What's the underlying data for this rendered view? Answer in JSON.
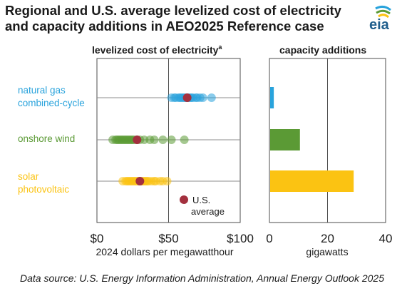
{
  "title_line1": "Regional and U.S. average levelized cost of electricity",
  "title_line2": "and capacity additions in AEO2025 Reference case",
  "logo_text": "eia",
  "source": "Data source:  U.S. Energy Information Administration, Annual Energy Outlook 2025",
  "colors": {
    "natural_gas": "#29a3dc",
    "onshore_wind": "#5b9a35",
    "solar": "#fbc312",
    "us_average": "#a3303e",
    "grid": "#4d4d4d"
  },
  "chart_data": [
    {
      "type": "scatter",
      "title": "levelized cost of electricity",
      "title_sup": "a",
      "xlabel": "2024 dollars per megawatthour",
      "xlim": [
        0,
        100
      ],
      "x_ticks": [
        0,
        50,
        100
      ],
      "x_tick_labels": [
        "$0",
        "$50",
        "$100"
      ],
      "grid": true,
      "categories": [
        {
          "name": "natural gas",
          "name2": "combined-cycle",
          "color_key": "natural_gas",
          "regional": [
            52,
            54,
            55,
            57,
            58,
            59,
            60,
            61,
            62,
            63,
            64,
            65,
            66,
            67,
            69,
            70,
            72,
            74,
            80
          ],
          "us_average": 63
        },
        {
          "name": "onshore wind",
          "name2": "",
          "color_key": "onshore_wind",
          "regional": [
            11,
            13,
            14,
            15,
            16,
            17,
            18,
            19,
            20,
            21,
            22,
            23,
            24,
            25,
            26,
            28,
            30,
            33,
            37,
            40,
            46,
            52,
            61
          ],
          "us_average": 28
        },
        {
          "name": "solar",
          "name2": "photovoltaic",
          "color_key": "solar",
          "regional": [
            18,
            20,
            21,
            22,
            23,
            24,
            25,
            26,
            27,
            28,
            29,
            30,
            31,
            32,
            33,
            34,
            35,
            36,
            38,
            40,
            41,
            44,
            46,
            49
          ],
          "us_average": 30
        }
      ],
      "legend": {
        "label_line1": "U.S.",
        "label_line2": "average",
        "placement": "lower-right"
      }
    },
    {
      "type": "bar",
      "orientation": "horizontal",
      "title": "capacity additions",
      "xlabel": "gigawatts",
      "xlim": [
        0,
        40
      ],
      "x_ticks": [
        0,
        20,
        40
      ],
      "x_tick_labels": [
        "0",
        "20",
        "40"
      ],
      "grid": true,
      "categories": [
        "natural gas combined-cycle",
        "onshore wind",
        "solar photovoltaic"
      ],
      "values": [
        1.5,
        10.5,
        29
      ],
      "color_keys": [
        "natural_gas",
        "onshore_wind",
        "solar"
      ]
    }
  ]
}
